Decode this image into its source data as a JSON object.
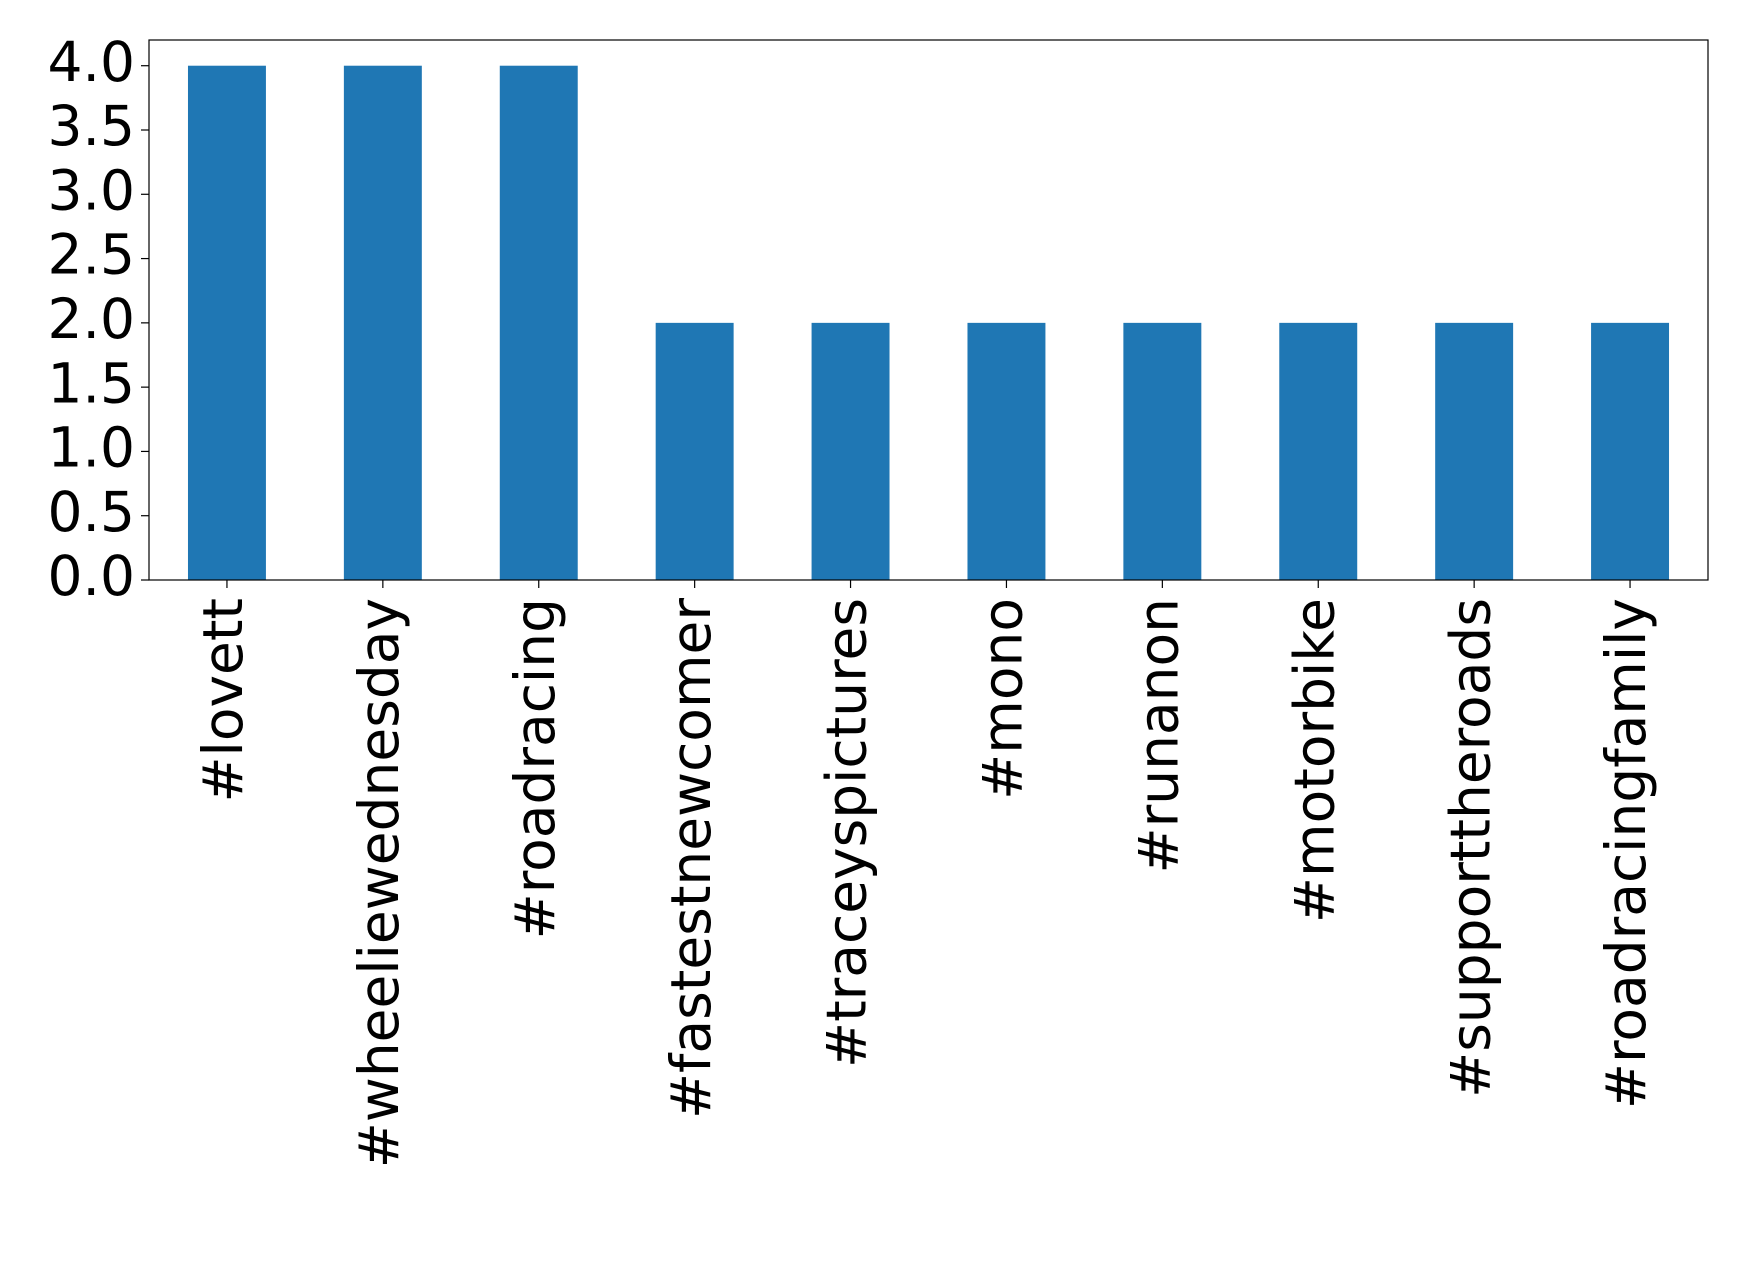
{
  "chart_data": {
    "type": "bar",
    "categories": [
      "#lovett",
      "#wheeliewednesday",
      "#roadracing",
      "#fastestnewcomer",
      "#traceyspictures",
      "#mono",
      "#runanon",
      "#motorbike",
      "#supporttheroads",
      "#roadracingfamily"
    ],
    "values": [
      4,
      4,
      4,
      2,
      2,
      2,
      2,
      2,
      2,
      2
    ],
    "color": "#1f77b4",
    "ylim": [
      0,
      4.2
    ],
    "yticks": [
      {
        "value": 0,
        "label": "0.0"
      },
      0.5,
      {
        "value": 1,
        "label": "1.0"
      },
      1.5,
      {
        "value": 2,
        "label": "2.0"
      },
      2.5,
      {
        "value": 3,
        "label": "3.0"
      },
      3.5,
      {
        "value": 4,
        "label": "4.0"
      }
    ],
    "grid": false
  }
}
